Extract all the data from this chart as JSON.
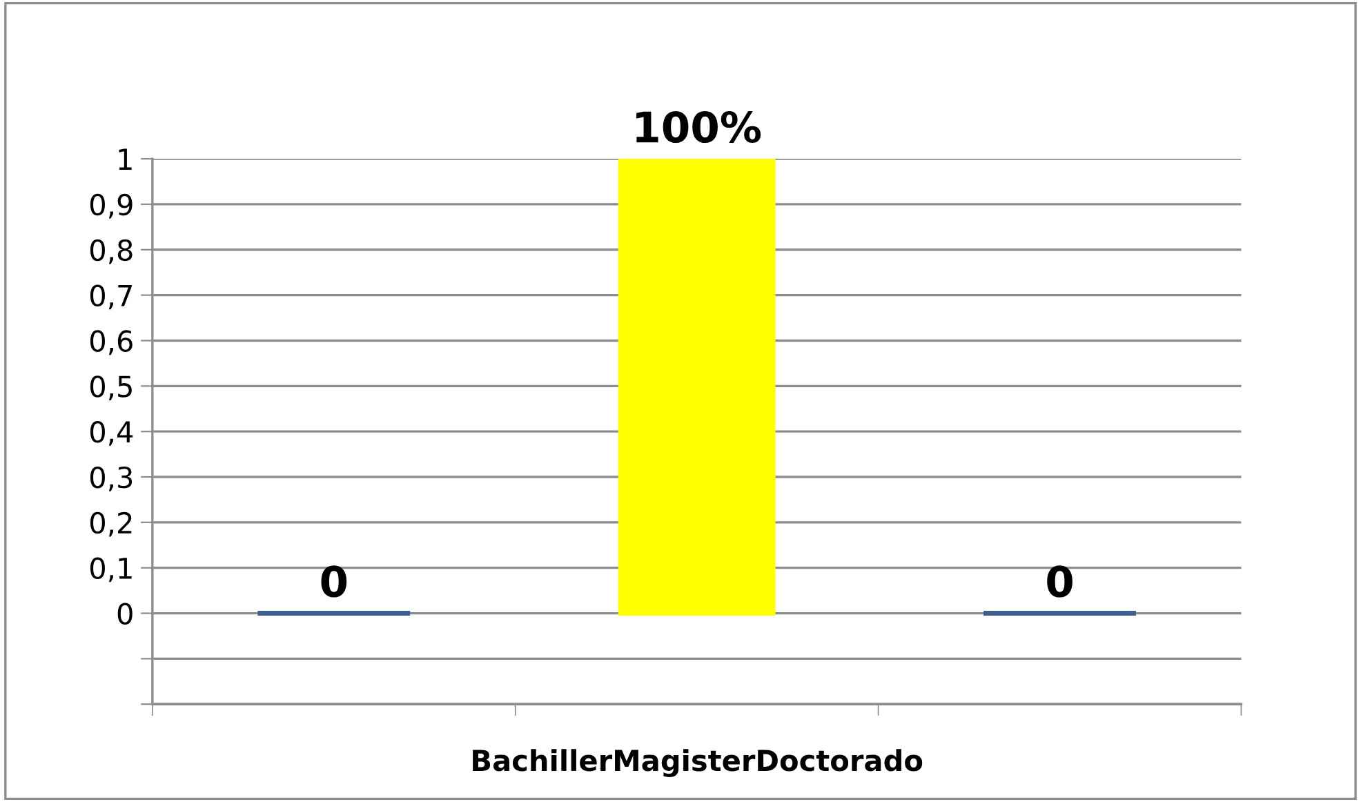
{
  "chart_data": {
    "type": "bar",
    "categories": [
      null,
      null,
      null
    ],
    "values": [
      0,
      1,
      0
    ],
    "colors": [
      "#3b6194",
      "#ffff00",
      "#3b6194"
    ],
    "value_labels": [
      "0",
      "100%",
      "0"
    ],
    "xlabel": "BachillerMagisterDoctorado",
    "ylim": [
      -0.2,
      1
    ],
    "yticks": [
      {
        "value": -0.2,
        "label": null
      },
      {
        "value": -0.1,
        "label": null
      },
      {
        "value": 0,
        "label": "0"
      },
      {
        "value": 0.1,
        "label": "0,1"
      },
      {
        "value": 0.2,
        "label": "0,2"
      },
      {
        "value": 0.3,
        "label": "0,3"
      },
      {
        "value": 0.4,
        "label": "0,4"
      },
      {
        "value": 0.5,
        "label": "0,5"
      },
      {
        "value": 0.6,
        "label": "0,6"
      },
      {
        "value": 0.7,
        "label": "0,7"
      },
      {
        "value": 0.8,
        "label": "0,8"
      },
      {
        "value": 0.9,
        "label": "0,9"
      },
      {
        "value": 1,
        "label": "1"
      }
    ],
    "grid": "y",
    "legend": false
  }
}
